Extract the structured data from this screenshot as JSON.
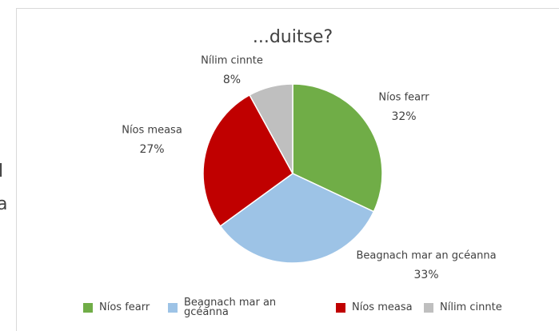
{
  "background_fragments": [
    "l",
    "a"
  ],
  "chart_data": {
    "type": "pie",
    "title": "...duitse?",
    "categories": [
      "Níos fearr",
      "Beagnach mar an gcéanna",
      "Níos measa",
      "Nílim cinnte"
    ],
    "values": [
      32,
      33,
      27,
      8
    ],
    "value_labels": [
      "32%",
      "33%",
      "27%",
      "8%"
    ],
    "colors": [
      "#70ad47",
      "#9dc3e6",
      "#c00000",
      "#bfbfbf"
    ],
    "legend": "bottom"
  }
}
